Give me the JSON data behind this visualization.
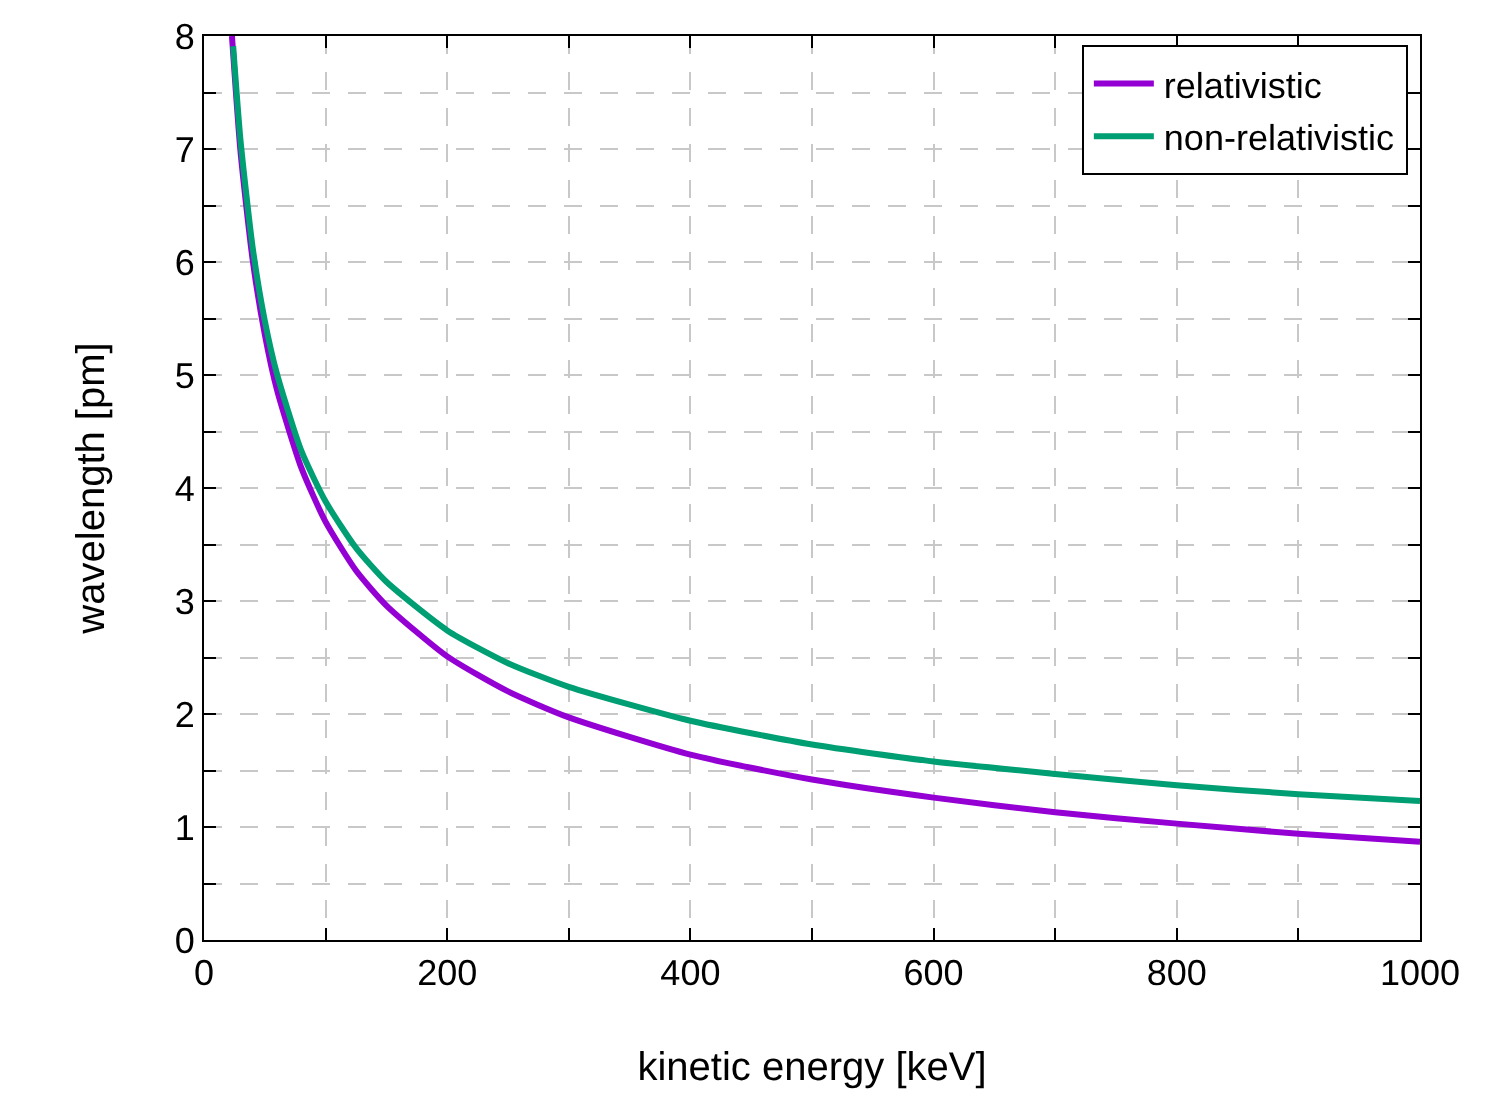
{
  "chart_data": {
    "type": "line",
    "xlabel": "kinetic energy [keV]",
    "ylabel": "wavelength [pm]",
    "xlim": [
      0,
      1000
    ],
    "ylim": [
      0,
      8
    ],
    "xticks": [
      0,
      {
        "value": 100,
        "label": null
      },
      200,
      {
        "value": 300,
        "label": null
      },
      400,
      {
        "value": 500,
        "label": null
      },
      600,
      {
        "value": 700,
        "label": null
      },
      800,
      {
        "value": 900,
        "label": null
      },
      1000
    ],
    "yticks": [
      0,
      {
        "value": 0.5,
        "label": null
      },
      1,
      {
        "value": 1.5,
        "label": null
      },
      2,
      {
        "value": 2.5,
        "label": null
      },
      3,
      {
        "value": 3.5,
        "label": null
      },
      4,
      {
        "value": 4.5,
        "label": null
      },
      5,
      {
        "value": 5.5,
        "label": null
      },
      6,
      {
        "value": 6.5,
        "label": null
      },
      7,
      {
        "value": 7.5,
        "label": null
      },
      8
    ],
    "grid": true,
    "legend": "top right",
    "line_style": "solid",
    "marker": "none",
    "series": [
      {
        "name": "relativistic",
        "color": "#9400d3",
        "x": [
          23,
          30,
          40,
          50,
          60,
          80,
          100,
          125,
          150,
          200,
          250,
          300,
          400,
          500,
          600,
          700,
          800,
          900,
          1000
        ],
        "values": [
          8.0,
          6.98,
          6.02,
          5.36,
          4.87,
          4.18,
          3.7,
          3.27,
          2.96,
          2.51,
          2.2,
          1.97,
          1.64,
          1.42,
          1.26,
          1.13,
          1.03,
          0.94,
          0.87
        ]
      },
      {
        "name": "non-relativistic",
        "color": "#009e73",
        "x": [
          24,
          30,
          40,
          50,
          60,
          80,
          100,
          125,
          150,
          200,
          250,
          300,
          400,
          500,
          600,
          700,
          800,
          900,
          1000
        ],
        "values": [
          7.91,
          7.08,
          6.13,
          5.48,
          5.01,
          4.33,
          3.88,
          3.47,
          3.17,
          2.74,
          2.45,
          2.24,
          1.94,
          1.73,
          1.58,
          1.47,
          1.37,
          1.29,
          1.23
        ]
      }
    ]
  }
}
